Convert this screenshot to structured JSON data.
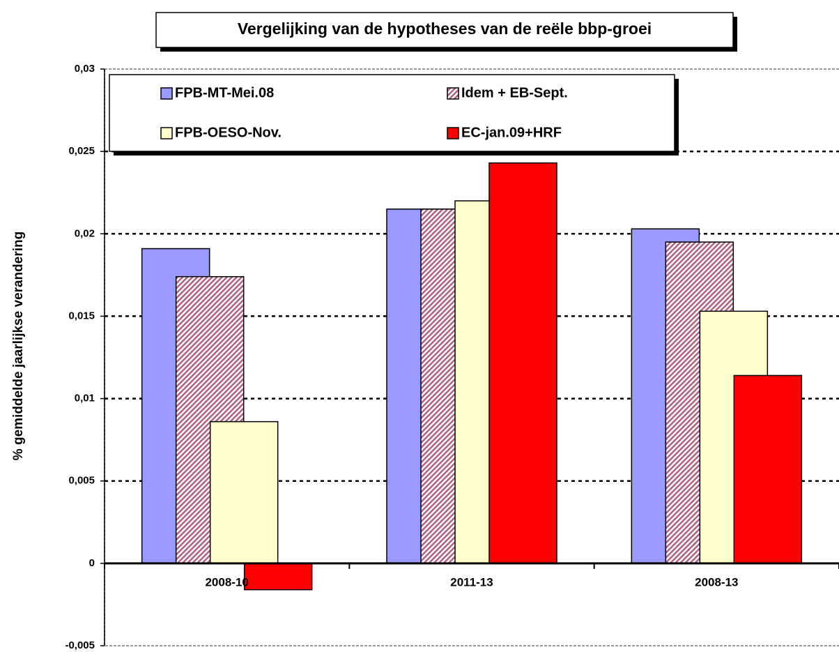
{
  "chart_data": {
    "type": "bar",
    "title": "Vergelijking van de hypotheses van de reële bbp-groei",
    "ylabel": "% gemiddelde jaarlijkse verandering",
    "categories": [
      "2008-10",
      "2011-13",
      "2008-13"
    ],
    "series": [
      {
        "name": "FPB-MT-Mei.08",
        "color": "#9999ff",
        "values": [
          0.0191,
          0.0215,
          0.0203
        ]
      },
      {
        "name": "Idem + EB-Sept.",
        "color": "#993366",
        "pattern": "hatch",
        "values": [
          0.0174,
          0.0215,
          0.0195
        ]
      },
      {
        "name": "FPB-OESO-Nov.",
        "color": "#ffffcc",
        "values": [
          0.0086,
          0.022,
          0.0153
        ]
      },
      {
        "name": "EC-jan.09+HRF",
        "color": "#ff0000",
        "values": [
          -0.0016,
          0.0243,
          0.0114
        ]
      }
    ],
    "ylim": [
      -0.005,
      0.03
    ],
    "yticks": [
      {
        "value": -0.005,
        "label": "-0,005"
      },
      0,
      {
        "value": 0.005,
        "label": "0,005"
      },
      {
        "value": 0.01,
        "label": "0,01"
      },
      {
        "value": 0.015,
        "label": "0,015"
      },
      {
        "value": 0.02,
        "label": "0,02"
      },
      {
        "value": 0.025,
        "label": "0,025"
      },
      {
        "value": 0.03,
        "label": "0,03"
      }
    ],
    "grid": true,
    "legend": "top"
  }
}
